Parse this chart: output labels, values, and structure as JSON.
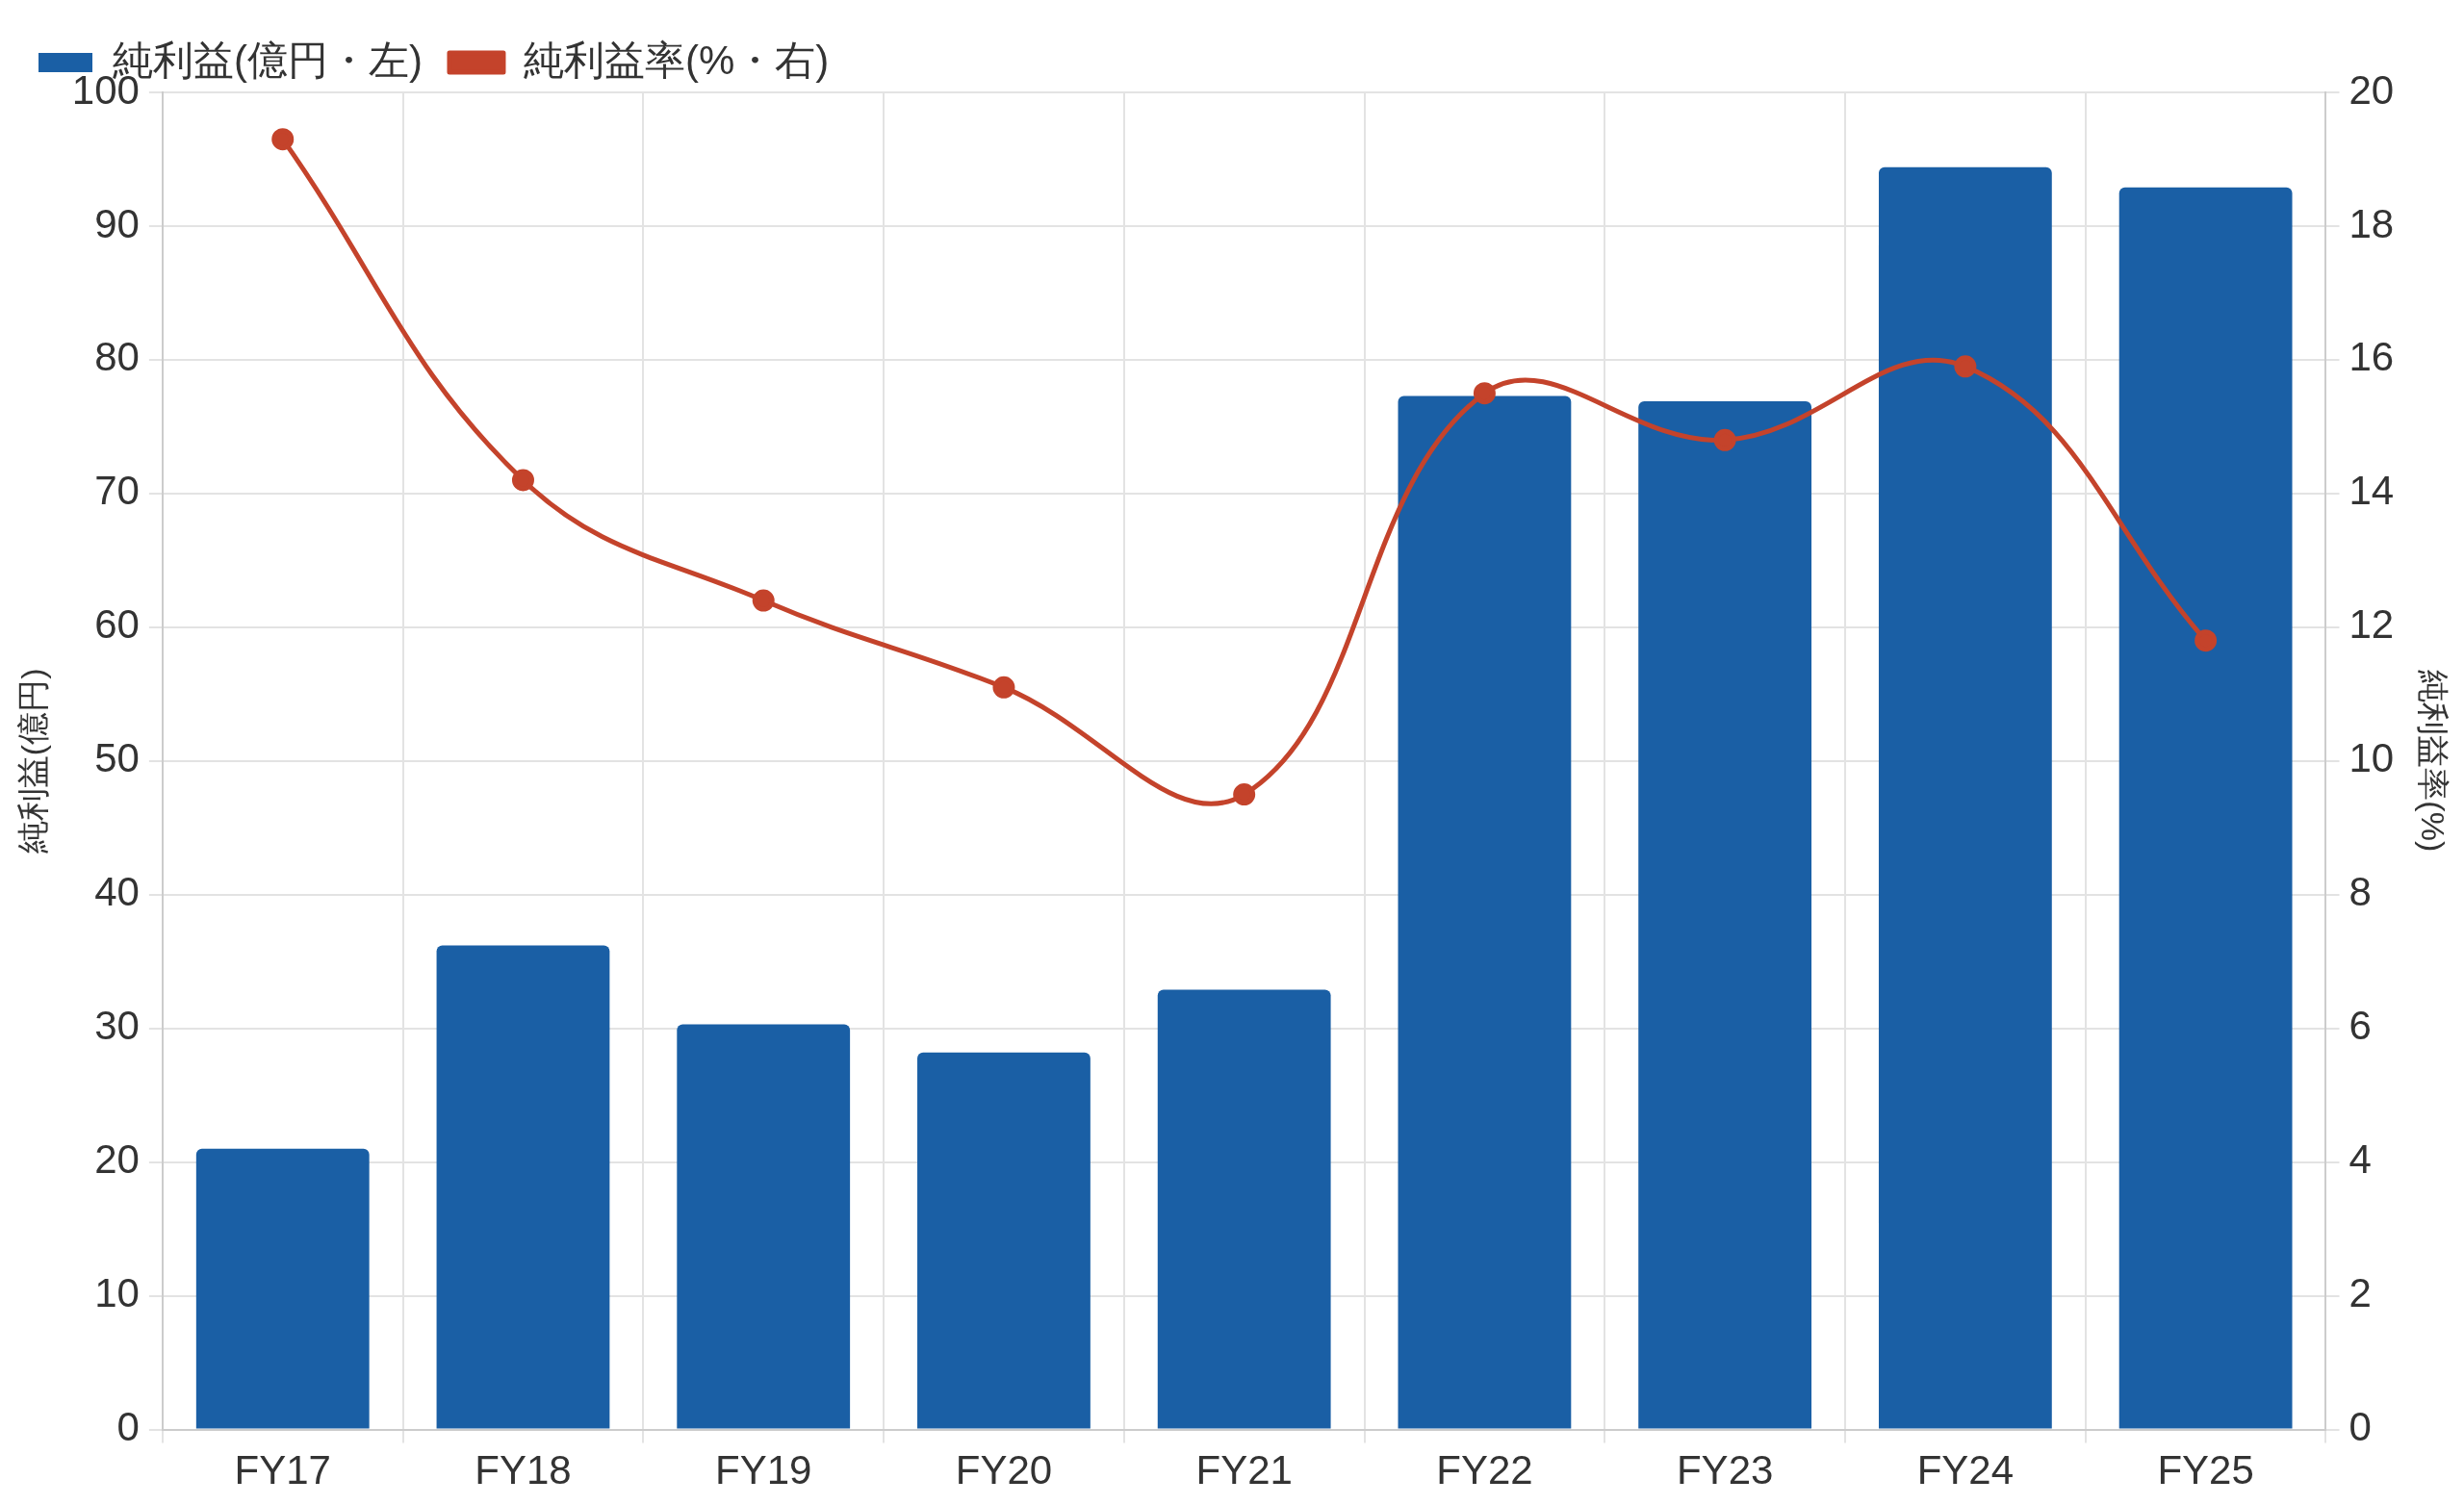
{
  "chart_data": {
    "type": "bar",
    "categories": [
      "FY17",
      "FY18",
      "FY19",
      "FY20",
      "FY21",
      "FY22",
      "FY23",
      "FY24",
      "FY25"
    ],
    "series": [
      {
        "name": "純利益(億円・左)",
        "color": "#1a5fa5",
        "values": [
          21.0,
          36.2,
          30.3,
          28.2,
          32.9,
          77.3,
          76.9,
          94.4,
          92.9
        ]
      },
      {
        "name": "純利益率(%・右)",
        "type": "line",
        "axis": "y2",
        "color": "#c4432b",
        "values": [
          19.3,
          14.2,
          12.4,
          11.1,
          9.5,
          15.5,
          14.8,
          15.9,
          11.8
        ]
      }
    ],
    "ylabel": "純利益(億円)",
    "y2label": "純利益率(%)",
    "ylim": [
      0,
      100
    ],
    "yticks": [
      0,
      10,
      20,
      30,
      40,
      50,
      60,
      70,
      80,
      90,
      100
    ],
    "y2lim": [
      0,
      20
    ],
    "y2ticks": [
      0,
      2,
      4,
      6,
      8,
      10,
      12,
      14,
      16,
      18,
      20
    ],
    "grid": true,
    "legend": "top left",
    "marker": "circle"
  }
}
